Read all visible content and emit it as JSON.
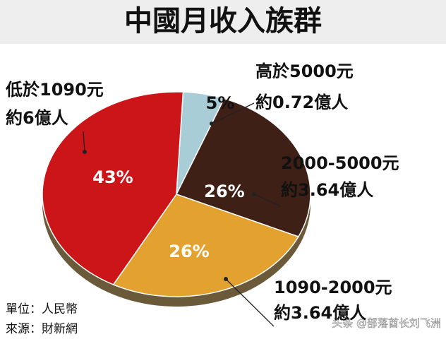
{
  "chart_data": {
    "type": "pie",
    "title": "中國月收入族群",
    "categories": [
      "高於5000元",
      "2000-5000元",
      "1090-2000元",
      "低於1090元"
    ],
    "sublabels": [
      "約0.72億人",
      "約3.64億人",
      "約3.64億人",
      "約6億人"
    ],
    "values": [
      5,
      26,
      26,
      43
    ],
    "value_labels": [
      "5%",
      "26%",
      "26%",
      "43%"
    ],
    "colors": [
      "#a9cdd6",
      "#3e2016",
      "#e3a230",
      "#cc1518"
    ],
    "unit": "單位：人民幣",
    "source": "來源：財新網",
    "watermark": "头条 @部落酋长刘飞洲"
  }
}
